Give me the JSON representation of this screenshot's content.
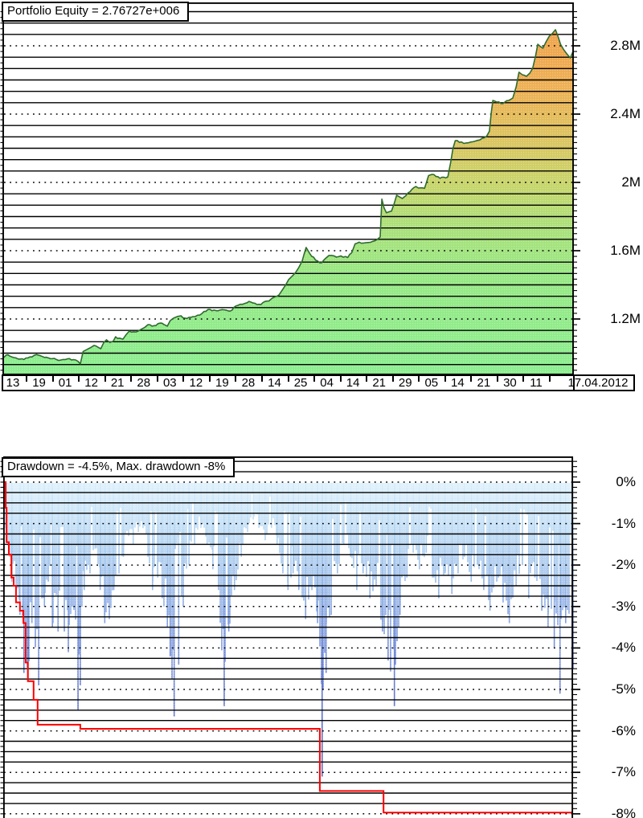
{
  "report": {
    "kind": "strategy-tester-graphs"
  },
  "colors": {
    "background": "#ffffff",
    "grid": "#000000",
    "frame": "#000000",
    "equity_line": "#2f6b2f",
    "max_dd_line": "#ff0000",
    "equity_fill_bottom": "#8cee90",
    "equity_fill_mid": "#c9d46a",
    "equity_fill_top": "#f0a24c",
    "dd_bar_light": "#d9eefb",
    "dd_bar_deep": "#4c5cc0"
  },
  "chart_data": [
    {
      "id": "equity",
      "type": "area",
      "title": "Portfolio Equity = 2.76727e+006",
      "final_equity": "2.76727e+006",
      "ylabel": "",
      "xlabel": "",
      "grid": "on",
      "legend_position": "none",
      "y_axis": {
        "labels": [
          "2.8M",
          "2.4M",
          "2M",
          "1.6M",
          "1.2M"
        ],
        "values_M": [
          2.8,
          2.4,
          2.0,
          1.6,
          1.2
        ]
      },
      "ylim_M": [
        0.87,
        3.05
      ],
      "x_axis": {
        "labels": [
          "13",
          "19",
          "01",
          "12",
          "21",
          "28",
          "03",
          "12",
          "19",
          "28",
          "14",
          "25",
          "04",
          "14",
          "21",
          "29",
          "05",
          "14",
          "21",
          "30",
          "11"
        ],
        "last_label": "17.04.2012"
      },
      "fill_stops": [
        [
          0,
          "#f0a24c"
        ],
        [
          0.18,
          "#eeb054"
        ],
        [
          0.32,
          "#ddc35f"
        ],
        [
          0.45,
          "#c9d46a"
        ],
        [
          0.58,
          "#abe07a"
        ],
        [
          0.72,
          "#97e884"
        ],
        [
          1,
          "#8cee90"
        ]
      ],
      "points_M": [
        [
          0.0,
          0.975
        ],
        [
          0.007,
          0.99
        ],
        [
          0.014,
          0.978
        ],
        [
          0.021,
          0.972
        ],
        [
          0.028,
          0.965
        ],
        [
          0.035,
          0.963
        ],
        [
          0.042,
          0.972
        ],
        [
          0.049,
          0.978
        ],
        [
          0.057,
          0.992
        ],
        [
          0.064,
          0.985
        ],
        [
          0.071,
          0.975
        ],
        [
          0.078,
          0.972
        ],
        [
          0.085,
          0.968
        ],
        [
          0.092,
          0.963
        ],
        [
          0.1,
          0.96
        ],
        [
          0.108,
          0.963
        ],
        [
          0.115,
          0.968
        ],
        [
          0.122,
          0.962
        ],
        [
          0.13,
          0.952
        ],
        [
          0.134,
          0.937
        ],
        [
          0.139,
          1.01
        ],
        [
          0.145,
          1.02
        ],
        [
          0.152,
          1.032
        ],
        [
          0.158,
          1.045
        ],
        [
          0.165,
          1.035
        ],
        [
          0.17,
          1.026
        ],
        [
          0.175,
          1.06
        ],
        [
          0.18,
          1.078
        ],
        [
          0.186,
          1.062
        ],
        [
          0.192,
          1.07
        ],
        [
          0.196,
          1.096
        ],
        [
          0.203,
          1.088
        ],
        [
          0.209,
          1.082
        ],
        [
          0.215,
          1.11
        ],
        [
          0.22,
          1.129
        ],
        [
          0.228,
          1.125
        ],
        [
          0.235,
          1.128
        ],
        [
          0.241,
          1.14
        ],
        [
          0.247,
          1.15
        ],
        [
          0.253,
          1.167
        ],
        [
          0.26,
          1.158
        ],
        [
          0.267,
          1.162
        ],
        [
          0.274,
          1.176
        ],
        [
          0.281,
          1.168
        ],
        [
          0.287,
          1.158
        ],
        [
          0.292,
          1.19
        ],
        [
          0.298,
          1.205
        ],
        [
          0.305,
          1.215
        ],
        [
          0.311,
          1.219
        ],
        [
          0.318,
          1.205
        ],
        [
          0.325,
          1.21
        ],
        [
          0.332,
          1.214
        ],
        [
          0.34,
          1.222
        ],
        [
          0.348,
          1.233
        ],
        [
          0.355,
          1.245
        ],
        [
          0.362,
          1.256
        ],
        [
          0.369,
          1.252
        ],
        [
          0.376,
          1.248
        ],
        [
          0.383,
          1.255
        ],
        [
          0.39,
          1.252
        ],
        [
          0.397,
          1.246
        ],
        [
          0.404,
          1.268
        ],
        [
          0.411,
          1.28
        ],
        [
          0.419,
          1.286
        ],
        [
          0.427,
          1.295
        ],
        [
          0.434,
          1.299
        ],
        [
          0.441,
          1.292
        ],
        [
          0.448,
          1.286
        ],
        [
          0.455,
          1.296
        ],
        [
          0.462,
          1.305
        ],
        [
          0.469,
          1.316
        ],
        [
          0.476,
          1.33
        ],
        [
          0.483,
          1.34
        ],
        [
          0.489,
          1.37
        ],
        [
          0.495,
          1.4
        ],
        [
          0.5,
          1.43
        ],
        [
          0.506,
          1.45
        ],
        [
          0.512,
          1.47
        ],
        [
          0.518,
          1.501
        ],
        [
          0.524,
          1.54
        ],
        [
          0.531,
          1.619
        ],
        [
          0.537,
          1.585
        ],
        [
          0.544,
          1.562
        ],
        [
          0.551,
          1.54
        ],
        [
          0.558,
          1.529
        ],
        [
          0.565,
          1.555
        ],
        [
          0.571,
          1.572
        ],
        [
          0.58,
          1.57
        ],
        [
          0.588,
          1.565
        ],
        [
          0.596,
          1.562
        ],
        [
          0.604,
          1.56
        ],
        [
          0.611,
          1.588
        ],
        [
          0.617,
          1.64
        ],
        [
          0.624,
          1.65
        ],
        [
          0.632,
          1.645
        ],
        [
          0.64,
          1.648
        ],
        [
          0.648,
          1.655
        ],
        [
          0.655,
          1.664
        ],
        [
          0.661,
          1.68
        ],
        [
          0.664,
          1.902
        ],
        [
          0.668,
          1.85
        ],
        [
          0.672,
          1.822
        ],
        [
          0.677,
          1.828
        ],
        [
          0.681,
          1.832
        ],
        [
          0.686,
          1.88
        ],
        [
          0.69,
          1.925
        ],
        [
          0.695,
          1.915
        ],
        [
          0.7,
          1.906
        ],
        [
          0.706,
          1.922
        ],
        [
          0.71,
          1.939
        ],
        [
          0.717,
          1.96
        ],
        [
          0.724,
          1.976
        ],
        [
          0.732,
          1.968
        ],
        [
          0.739,
          1.965
        ],
        [
          0.746,
          2.04
        ],
        [
          0.752,
          2.047
        ],
        [
          0.759,
          2.035
        ],
        [
          0.766,
          2.024
        ],
        [
          0.773,
          2.03
        ],
        [
          0.78,
          2.033
        ],
        [
          0.785,
          2.12
        ],
        [
          0.789,
          2.2
        ],
        [
          0.793,
          2.244
        ],
        [
          0.8,
          2.235
        ],
        [
          0.808,
          2.228
        ],
        [
          0.816,
          2.232
        ],
        [
          0.824,
          2.238
        ],
        [
          0.832,
          2.246
        ],
        [
          0.84,
          2.258
        ],
        [
          0.848,
          2.27
        ],
        [
          0.853,
          2.3
        ],
        [
          0.856,
          2.4
        ],
        [
          0.859,
          2.48
        ],
        [
          0.866,
          2.47
        ],
        [
          0.873,
          2.462
        ],
        [
          0.88,
          2.47
        ],
        [
          0.887,
          2.48
        ],
        [
          0.894,
          2.494
        ],
        [
          0.9,
          2.56
        ],
        [
          0.905,
          2.645
        ],
        [
          0.911,
          2.63
        ],
        [
          0.918,
          2.621
        ],
        [
          0.924,
          2.64
        ],
        [
          0.929,
          2.668
        ],
        [
          0.934,
          2.74
        ],
        [
          0.938,
          2.809
        ],
        [
          0.943,
          2.795
        ],
        [
          0.947,
          2.786
        ],
        [
          0.952,
          2.82
        ],
        [
          0.958,
          2.856
        ],
        [
          0.963,
          2.87
        ],
        [
          0.969,
          2.894
        ],
        [
          0.974,
          2.85
        ],
        [
          0.978,
          2.809
        ],
        [
          0.983,
          2.78
        ],
        [
          0.987,
          2.762
        ],
        [
          0.991,
          2.745
        ],
        [
          0.995,
          2.729
        ],
        [
          1.0,
          2.767
        ]
      ]
    },
    {
      "id": "drawdown",
      "type": "bar",
      "title": "Drawdown = -4.5%, Max. drawdown -8%",
      "current_drawdown_pct": -4.5,
      "max_drawdown_pct": -8,
      "grid": "on",
      "legend_position": "none",
      "y_axis": {
        "labels": [
          "0%",
          "-1%",
          "-2%",
          "-3%",
          "-4%",
          "-5%",
          "-6%",
          "-7%",
          "-8%"
        ],
        "values_pct": [
          0,
          -1,
          -2,
          -3,
          -4,
          -5,
          -6,
          -7,
          -8
        ]
      },
      "ylim_pct": [
        0,
        -8.1
      ],
      "bar_stops": [
        [
          0,
          "#d9eefb"
        ],
        [
          0.08,
          "#c5e2f7"
        ],
        [
          0.16,
          "#b0d3f1"
        ],
        [
          0.25,
          "#9cc0ea"
        ],
        [
          0.35,
          "#8aabe3"
        ],
        [
          0.45,
          "#7a96db"
        ],
        [
          0.55,
          "#6c84d3"
        ],
        [
          0.7,
          "#5a6ec8"
        ],
        [
          1,
          "#4c5cc0"
        ]
      ],
      "bars_envelope_pct": [
        [
          0.0,
          -1.2
        ],
        [
          0.014,
          -2.4
        ],
        [
          0.028,
          -3.2
        ],
        [
          0.035,
          -4.6
        ],
        [
          0.042,
          -4.7
        ],
        [
          0.049,
          -3.4
        ],
        [
          0.061,
          -4.9
        ],
        [
          0.071,
          -3.0
        ],
        [
          0.078,
          -2.4
        ],
        [
          0.085,
          -3.5
        ],
        [
          0.095,
          -3.6
        ],
        [
          0.106,
          -3.6
        ],
        [
          0.113,
          -4.1
        ],
        [
          0.12,
          -3.0
        ],
        [
          0.13,
          -5.5
        ],
        [
          0.134,
          -4.9
        ],
        [
          0.141,
          -2.6
        ],
        [
          0.151,
          -2.2
        ],
        [
          0.16,
          -1.6
        ],
        [
          0.169,
          -2.6
        ],
        [
          0.177,
          -3.4
        ],
        [
          0.185,
          -3.3
        ],
        [
          0.193,
          -2.6
        ],
        [
          0.202,
          -2.2
        ],
        [
          0.21,
          -1.8
        ],
        [
          0.219,
          -1.3
        ],
        [
          0.227,
          -1.5
        ],
        [
          0.236,
          -1.2
        ],
        [
          0.244,
          -1.1
        ],
        [
          0.253,
          -1.8
        ],
        [
          0.261,
          -2.6
        ],
        [
          0.27,
          -2.3
        ],
        [
          0.278,
          -2.8
        ],
        [
          0.287,
          -3.5
        ],
        [
          0.292,
          -4.2
        ],
        [
          0.299,
          -5.65
        ],
        [
          0.307,
          -4.4
        ],
        [
          0.315,
          -3.0
        ],
        [
          0.325,
          -2.0
        ],
        [
          0.335,
          -1.5
        ],
        [
          0.346,
          -1.1
        ],
        [
          0.357,
          -1.5
        ],
        [
          0.367,
          -2.1
        ],
        [
          0.377,
          -2.6
        ],
        [
          0.387,
          -5.4
        ],
        [
          0.395,
          -3.6
        ],
        [
          0.405,
          -2.6
        ],
        [
          0.417,
          -1.8
        ],
        [
          0.428,
          -1.2
        ],
        [
          0.438,
          -0.9
        ],
        [
          0.448,
          -1.1
        ],
        [
          0.459,
          -1.4
        ],
        [
          0.47,
          -1.1
        ],
        [
          0.48,
          -1.5
        ],
        [
          0.49,
          -2.2
        ],
        [
          0.499,
          -2.6
        ],
        [
          0.508,
          -2.2
        ],
        [
          0.518,
          -2.6
        ],
        [
          0.53,
          -3.3
        ],
        [
          0.541,
          -2.6
        ],
        [
          0.551,
          -3.4
        ],
        [
          0.559,
          -7.1
        ],
        [
          0.566,
          -4.6
        ],
        [
          0.575,
          -3.2
        ],
        [
          0.586,
          -2.2
        ],
        [
          0.597,
          -1.5
        ],
        [
          0.609,
          -1.8
        ],
        [
          0.62,
          -2.6
        ],
        [
          0.631,
          -2.2
        ],
        [
          0.643,
          -2.8
        ],
        [
          0.654,
          -2.5
        ],
        [
          0.665,
          -3.6
        ],
        [
          0.675,
          -4.3
        ],
        [
          0.686,
          -5.4
        ],
        [
          0.696,
          -3.2
        ],
        [
          0.708,
          -2.3
        ],
        [
          0.719,
          -1.7
        ],
        [
          0.73,
          -2.1
        ],
        [
          0.742,
          -1.7
        ],
        [
          0.753,
          -2.3
        ],
        [
          0.764,
          -2.8
        ],
        [
          0.775,
          -2.2
        ],
        [
          0.787,
          -2.7
        ],
        [
          0.798,
          -2.2
        ],
        [
          0.809,
          -1.8
        ],
        [
          0.821,
          -2.4
        ],
        [
          0.832,
          -2.0
        ],
        [
          0.843,
          -2.6
        ],
        [
          0.854,
          -3.1
        ],
        [
          0.866,
          -2.4
        ],
        [
          0.877,
          -2.9
        ],
        [
          0.888,
          -3.4
        ],
        [
          0.9,
          -2.5
        ],
        [
          0.911,
          -2.0
        ],
        [
          0.922,
          -2.8
        ],
        [
          0.933,
          -2.3
        ],
        [
          0.945,
          -3.1
        ],
        [
          0.956,
          -3.5
        ],
        [
          0.967,
          -4.0
        ],
        [
          0.977,
          -5.1
        ],
        [
          0.987,
          -3.4
        ],
        [
          1.0,
          -4.5
        ]
      ],
      "max_dd_line_pct": [
        [
          0.0,
          0.0
        ],
        [
          0.003,
          -0.62
        ],
        [
          0.0045,
          -1.45
        ],
        [
          0.0085,
          -1.75
        ],
        [
          0.013,
          -2.3
        ],
        [
          0.017,
          -2.5
        ],
        [
          0.021,
          -2.9
        ],
        [
          0.028,
          -3.1
        ],
        [
          0.034,
          -3.4
        ],
        [
          0.038,
          -4.35
        ],
        [
          0.042,
          -4.8
        ],
        [
          0.052,
          -5.25
        ],
        [
          0.059,
          -5.85
        ],
        [
          0.134,
          -5.95
        ],
        [
          0.555,
          -7.45
        ],
        [
          0.667,
          -7.97
        ],
        [
          1.0,
          -7.97
        ]
      ]
    }
  ]
}
